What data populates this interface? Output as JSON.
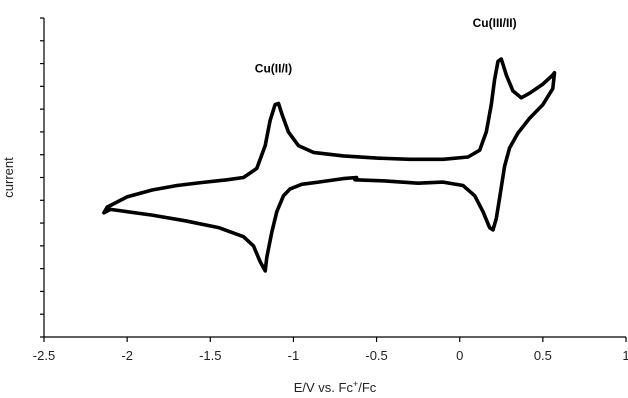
{
  "chart_data": {
    "type": "line",
    "xlabel_parts": [
      "E/V vs. Fc",
      "+",
      "/Fc"
    ],
    "ylabel": "current",
    "xlim": [
      -2.5,
      1
    ],
    "x_ticks": [
      -2.5,
      -2,
      -1.5,
      -1,
      -0.5,
      0,
      0.5,
      1
    ],
    "x_tick_labels": [
      "-2.5",
      "-2",
      "-1.5",
      "-1",
      "-0.5",
      "0",
      "0.5",
      "1"
    ],
    "ylim": [
      -7,
      7
    ],
    "y_ticks": [
      -7,
      -6,
      -5,
      -4,
      -3,
      -2,
      -1,
      0,
      1,
      2,
      3,
      4,
      5,
      6,
      7
    ],
    "y_tick_labels_shown": false,
    "grid": false,
    "legend": "none",
    "annotations": [
      {
        "text": "Cu(II/I)",
        "x": -1.12,
        "y": 4.6
      },
      {
        "text": "Cu(III/II)",
        "x": 0.21,
        "y": 6.6
      }
    ],
    "series": [
      {
        "points": [
          [
            -0.62,
            0.0
          ],
          [
            -0.7,
            -0.05
          ],
          [
            -0.85,
            -0.2
          ],
          [
            -0.95,
            -0.3
          ],
          [
            -1.02,
            -0.5
          ],
          [
            -1.06,
            -0.8
          ],
          [
            -1.1,
            -1.5
          ],
          [
            -1.13,
            -2.4
          ],
          [
            -1.16,
            -3.5
          ],
          [
            -1.17,
            -4.1
          ],
          [
            -1.2,
            -3.7
          ],
          [
            -1.24,
            -3.0
          ],
          [
            -1.3,
            -2.6
          ],
          [
            -1.45,
            -2.2
          ],
          [
            -1.65,
            -1.9
          ],
          [
            -1.85,
            -1.65
          ],
          [
            -2.05,
            -1.45
          ],
          [
            -2.1,
            -1.4
          ],
          [
            -2.14,
            -1.55
          ],
          [
            -2.12,
            -1.3
          ],
          [
            -2.0,
            -0.85
          ],
          [
            -1.85,
            -0.55
          ],
          [
            -1.7,
            -0.35
          ],
          [
            -1.55,
            -0.22
          ],
          [
            -1.4,
            -0.1
          ],
          [
            -1.3,
            0.0
          ],
          [
            -1.22,
            0.4
          ],
          [
            -1.17,
            1.4
          ],
          [
            -1.14,
            2.5
          ],
          [
            -1.11,
            3.2
          ],
          [
            -1.09,
            3.25
          ],
          [
            -1.07,
            2.8
          ],
          [
            -1.03,
            2.0
          ],
          [
            -0.97,
            1.4
          ],
          [
            -0.88,
            1.1
          ],
          [
            -0.7,
            0.95
          ],
          [
            -0.5,
            0.85
          ],
          [
            -0.3,
            0.8
          ],
          [
            -0.1,
            0.8
          ],
          [
            0.05,
            0.9
          ],
          [
            0.12,
            1.2
          ],
          [
            0.16,
            2.0
          ],
          [
            0.19,
            3.2
          ],
          [
            0.21,
            4.3
          ],
          [
            0.23,
            5.1
          ],
          [
            0.25,
            5.2
          ],
          [
            0.28,
            4.5
          ],
          [
            0.32,
            3.8
          ],
          [
            0.37,
            3.5
          ],
          [
            0.42,
            3.7
          ],
          [
            0.5,
            4.1
          ],
          [
            0.56,
            4.5
          ],
          [
            0.57,
            4.6
          ],
          [
            0.56,
            3.9
          ],
          [
            0.5,
            3.2
          ],
          [
            0.42,
            2.6
          ],
          [
            0.35,
            1.95
          ],
          [
            0.3,
            1.3
          ],
          [
            0.27,
            0.5
          ],
          [
            0.24,
            -0.9
          ],
          [
            0.22,
            -1.8
          ],
          [
            0.2,
            -2.3
          ],
          [
            0.18,
            -2.2
          ],
          [
            0.14,
            -1.5
          ],
          [
            0.09,
            -0.8
          ],
          [
            0.02,
            -0.35
          ],
          [
            -0.1,
            -0.2
          ],
          [
            -0.25,
            -0.25
          ],
          [
            -0.45,
            -0.15
          ],
          [
            -0.63,
            -0.1
          ]
        ]
      }
    ]
  }
}
